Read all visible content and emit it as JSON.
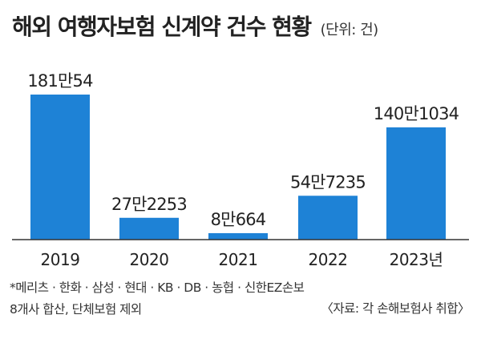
{
  "header": {
    "title": "해외 여행자보험 신계약 건수 현황",
    "unit": "(단위: 건)"
  },
  "footnote": {
    "line1": "*메리츠 · 한화 · 삼성 · 현대 · KB · DB · 농협 · 신한EZ손보",
    "line2": "8개사 합산, 단체보험 제외"
  },
  "source": "〈자료: 각 손해보험사 취합〉",
  "colors": {
    "bar": "#1e82d6",
    "text": "#222222"
  },
  "chart_data": {
    "type": "bar",
    "title": "해외 여행자보험 신계약 건수 현황",
    "unit": "(단위: 건)",
    "categories": [
      "2019",
      "2020",
      "2021",
      "2022",
      "2023년"
    ],
    "values": [
      1810054,
      272253,
      80664,
      547235,
      1401034
    ],
    "data_labels": [
      "181만54",
      "27만2253",
      "8만664",
      "54만7235",
      "140만1034"
    ],
    "ylim": [
      0,
      1810054
    ],
    "grid": false,
    "legend": "none"
  }
}
